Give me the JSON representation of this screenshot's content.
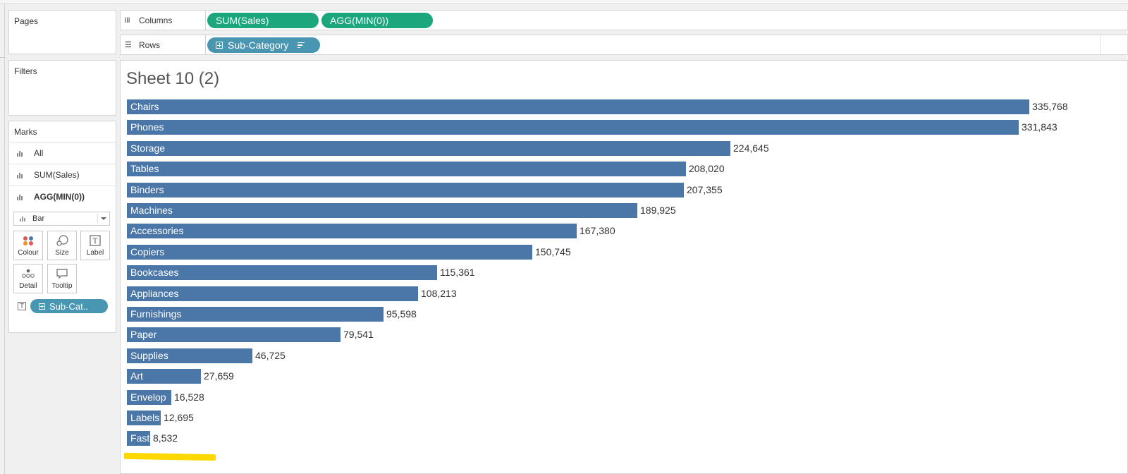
{
  "panels": {
    "pages_title": "Pages",
    "filters_title": "Filters",
    "marks_title": "Marks"
  },
  "marks": {
    "cards": [
      {
        "label": "All",
        "bold": false
      },
      {
        "label": "SUM(Sales)",
        "bold": false
      },
      {
        "label": "AGG(MIN(0))",
        "bold": true
      }
    ],
    "mark_type": "Bar",
    "buttons": {
      "colour": "Colour",
      "size": "Size",
      "label": "Label",
      "detail": "Detail",
      "tooltip": "Tooltip"
    },
    "label_pill": "Sub-Cat.."
  },
  "shelves": {
    "columns_label": "Columns",
    "rows_label": "Rows",
    "columns_pills": [
      "SUM(Sales)",
      "AGG(MIN(0))"
    ],
    "rows_pill": "Sub-Category"
  },
  "sheet": {
    "title": "Sheet 10 (2)"
  },
  "colors": {
    "bar": "#4a76a8",
    "green_pill": "#1ba67c",
    "blue_pill": "#4996b2",
    "highlight": "#ffd800"
  },
  "chart_data": {
    "type": "bar",
    "orientation": "horizontal",
    "title": "Sheet 10 (2)",
    "xlabel": "",
    "ylabel": "",
    "xlim": [
      0,
      340000
    ],
    "categories": [
      "Chairs",
      "Phones",
      "Storage",
      "Tables",
      "Binders",
      "Machines",
      "Accessories",
      "Copiers",
      "Bookcases",
      "Appliances",
      "Furnishings",
      "Paper",
      "Supplies",
      "Art",
      "Envelop",
      "Labels",
      "Fast"
    ],
    "values": [
      335768,
      331843,
      224645,
      208020,
      207355,
      189925,
      167380,
      150745,
      115361,
      108213,
      95598,
      79541,
      46725,
      27659,
      16528,
      12695,
      8532
    ],
    "value_labels": [
      "335,768",
      "331,843",
      "224,645",
      "208,020",
      "207,355",
      "189,925",
      "167,380",
      "150,745",
      "115,361",
      "108,213",
      "95,598",
      "79,541",
      "46,725",
      "27,659",
      "16,528",
      "12,695",
      "8,532"
    ]
  }
}
